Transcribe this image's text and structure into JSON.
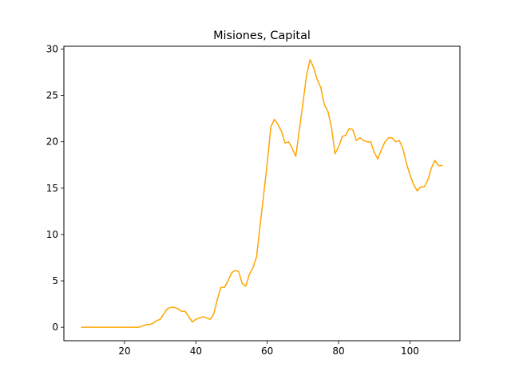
{
  "chart_data": {
    "type": "line",
    "title": "Misiones, Capital",
    "xlabel": "",
    "ylabel": "",
    "xlim": [
      3,
      114
    ],
    "ylim": [
      -1.45,
      30.3
    ],
    "grid": false,
    "xticks": [
      20,
      40,
      60,
      80,
      100
    ],
    "yticks": [
      0,
      5,
      10,
      15,
      20,
      25,
      30
    ],
    "series": [
      {
        "color": "#ffa500",
        "x": [
          8,
          9,
          10,
          11,
          12,
          13,
          14,
          15,
          16,
          17,
          18,
          19,
          20,
          21,
          22,
          23,
          24,
          25,
          26,
          27,
          28,
          29,
          30,
          31,
          32,
          33,
          34,
          35,
          36,
          37,
          38,
          39,
          40,
          41,
          42,
          43,
          44,
          45,
          46,
          47,
          48,
          49,
          50,
          51,
          52,
          53,
          54,
          55,
          56,
          57,
          58,
          59,
          60,
          61,
          62,
          63,
          64,
          65,
          66,
          67,
          68,
          69,
          70,
          71,
          72,
          73,
          74,
          75,
          76,
          77,
          78,
          79,
          80,
          81,
          82,
          83,
          84,
          85,
          86,
          87,
          88,
          89,
          90,
          91,
          92,
          93,
          94,
          95,
          96,
          97,
          98,
          99,
          100,
          101,
          102,
          103,
          104,
          105,
          106,
          107,
          108,
          109
        ],
        "y": [
          0,
          0,
          0,
          0,
          0,
          0,
          0,
          0,
          0,
          0,
          0,
          0,
          0,
          0,
          0,
          0,
          0,
          0.14,
          0.28,
          0.29,
          0.43,
          0.71,
          0.86,
          1.43,
          2.0,
          2.14,
          2.14,
          2.0,
          1.71,
          1.71,
          1.14,
          0.57,
          0.86,
          1.0,
          1.14,
          1.0,
          0.86,
          1.43,
          3.0,
          4.29,
          4.29,
          5.0,
          5.86,
          6.14,
          6.0,
          4.71,
          4.43,
          5.71,
          6.43,
          7.57,
          11.0,
          14.29,
          17.71,
          21.57,
          22.43,
          21.86,
          21.14,
          19.86,
          20.0,
          19.29,
          18.43,
          21.29,
          24.14,
          27.14,
          28.86,
          28.0,
          26.71,
          25.86,
          24.0,
          23.29,
          21.57,
          18.71,
          19.43,
          20.57,
          20.71,
          21.43,
          21.29,
          20.14,
          20.43,
          20.14,
          20.0,
          20.0,
          18.86,
          18.14,
          19.14,
          20.0,
          20.43,
          20.43,
          20.0,
          20.14,
          19.29,
          17.71,
          16.43,
          15.43,
          14.71,
          15.14,
          15.14,
          15.86,
          17.14,
          18.0,
          17.43,
          17.43
        ]
      }
    ]
  }
}
